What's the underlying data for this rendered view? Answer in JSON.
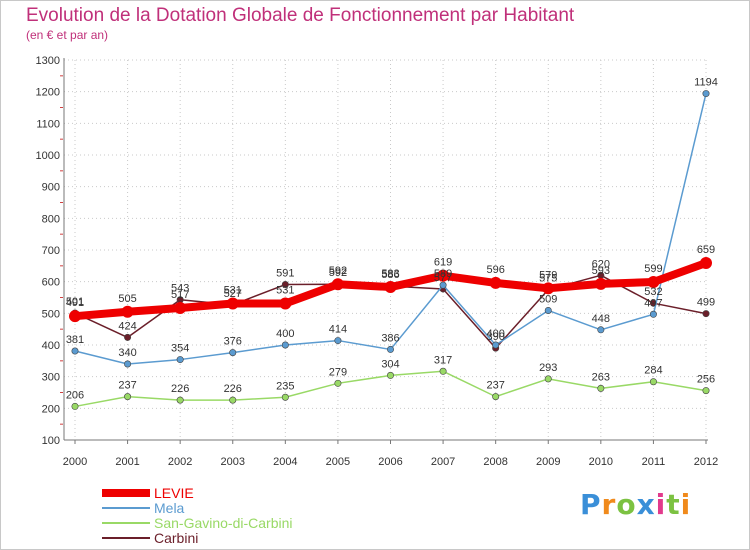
{
  "chart_data": {
    "type": "line",
    "title": "Evolution de la Dotation Globale de Fonctionnement par Habitant",
    "subtitle": "(en € et par an)",
    "xlabel": "",
    "ylabel": "",
    "ylim": [
      100,
      1300
    ],
    "yticks": [
      100,
      200,
      300,
      400,
      500,
      600,
      700,
      800,
      900,
      1000,
      1100,
      1200,
      1300
    ],
    "categories": [
      "2000",
      "2001",
      "2002",
      "2003",
      "2004",
      "2005",
      "2006",
      "2007",
      "2008",
      "2009",
      "2010",
      "2011",
      "2012"
    ],
    "series": [
      {
        "name": "Carbini",
        "color": "#6b1f2a",
        "values": [
          501,
          424,
          543,
          527,
          591,
          592,
          586,
          577,
          390,
          575,
          620,
          532,
          499
        ],
        "labeled_indices": [
          0,
          1,
          2,
          3,
          4,
          5,
          6,
          7,
          8,
          9,
          10,
          11,
          12
        ]
      },
      {
        "name": "San-Gavino-di-Carbini",
        "color": "#99d966",
        "values": [
          206,
          237,
          226,
          226,
          235,
          279,
          304,
          317,
          237,
          293,
          263,
          284,
          256
        ],
        "labeled_indices": [
          0,
          1,
          2,
          3,
          4,
          5,
          6,
          7,
          8,
          9,
          10,
          11,
          12
        ]
      },
      {
        "name": "Mela",
        "color": "#5b9bd0",
        "values": [
          381,
          340,
          354,
          376,
          400,
          414,
          386,
          589,
          400,
          509,
          448,
          497,
          1194
        ],
        "labeled_indices": [
          0,
          1,
          2,
          3,
          4,
          5,
          6,
          7,
          8,
          9,
          10,
          11,
          12
        ]
      },
      {
        "name": "LEVIE",
        "color": "#ee0000",
        "values": [
          491,
          505,
          517,
          531,
          531,
          592,
          583,
          619,
          596,
          579,
          593,
          599,
          659
        ],
        "labeled_indices": [
          0,
          1,
          2,
          3,
          4,
          5,
          6,
          7,
          8,
          9,
          10,
          11,
          12
        ]
      }
    ],
    "legend": [
      "LEVIE",
      "Mela",
      "San-Gavino-di-Carbini",
      "Carbini"
    ],
    "legend_position": "bottom-left"
  },
  "branding": {
    "logo_text": "Proxiti"
  }
}
